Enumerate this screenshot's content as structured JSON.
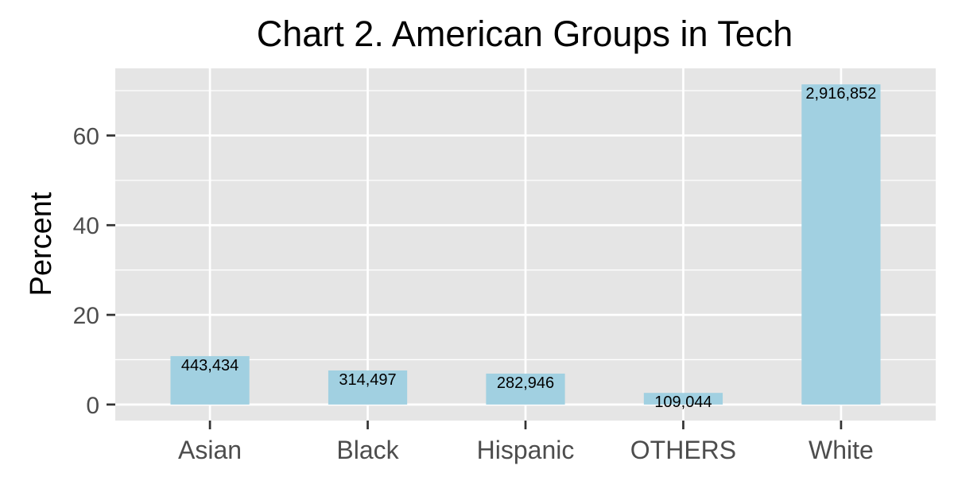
{
  "chart_data": {
    "type": "bar",
    "title": "Chart 2. American Groups in Tech",
    "xlabel": "",
    "ylabel": "Percent",
    "categories": [
      "Asian",
      "Black",
      "Hispanic",
      "OTHERS",
      "White"
    ],
    "values": [
      10.8,
      7.6,
      6.9,
      2.6,
      71.4
    ],
    "data_labels": [
      "443,434",
      "314,497",
      "282,946",
      "109,044",
      "2,916,852"
    ],
    "yticks": [
      0,
      20,
      40,
      60
    ],
    "ytick_labels": [
      "0",
      "20",
      "40",
      "60"
    ],
    "ylim": [
      -3.57,
      74.97
    ],
    "grid": true,
    "legend": "none",
    "colors": {
      "bar": "#A1D0E1",
      "panel": "#E5E5E5",
      "grid": "#FFFFFF",
      "tick_text": "#4D4D4D",
      "title_text": "#000000"
    }
  }
}
